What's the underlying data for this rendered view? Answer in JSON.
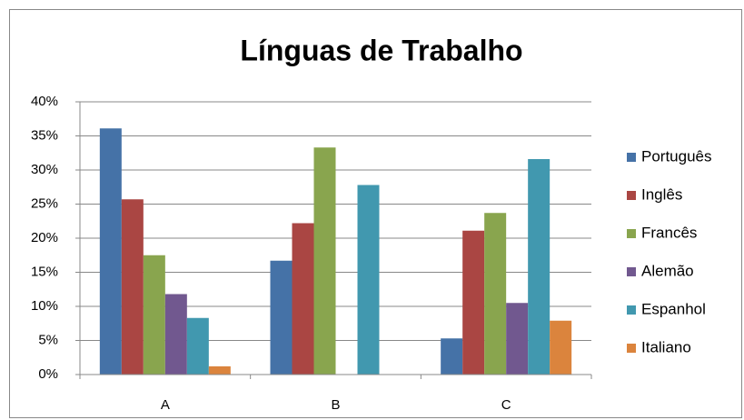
{
  "chart_data": {
    "type": "bar",
    "title": "Línguas de Trabalho",
    "categories": [
      "A",
      "B",
      "C"
    ],
    "series": [
      {
        "name": "Português",
        "color": "#4572a7",
        "values": [
          36.1,
          16.7,
          5.3
        ]
      },
      {
        "name": "Inglês",
        "color": "#aa4643",
        "values": [
          25.7,
          22.2,
          21.1
        ]
      },
      {
        "name": "Francês",
        "color": "#89a54e",
        "values": [
          17.5,
          33.3,
          23.7
        ]
      },
      {
        "name": "Alemão",
        "color": "#71588f",
        "values": [
          11.8,
          0,
          10.5
        ]
      },
      {
        "name": "Espanhol",
        "color": "#4198af",
        "values": [
          8.3,
          27.8,
          31.6
        ]
      },
      {
        "name": "Italiano",
        "color": "#db843d",
        "values": [
          1.2,
          0,
          7.9
        ]
      }
    ],
    "ylim": [
      0,
      40
    ],
    "yticks": [
      {
        "value": 0,
        "label": "0%"
      },
      {
        "value": 5,
        "label": "5%"
      },
      {
        "value": 10,
        "label": "10%"
      },
      {
        "value": 15,
        "label": "15%"
      },
      {
        "value": 20,
        "label": "20%"
      },
      {
        "value": 25,
        "label": "25%"
      },
      {
        "value": 30,
        "label": "30%"
      },
      {
        "value": 35,
        "label": "35%"
      },
      {
        "value": 40,
        "label": "40%"
      }
    ],
    "grid": true,
    "legend": "right"
  }
}
